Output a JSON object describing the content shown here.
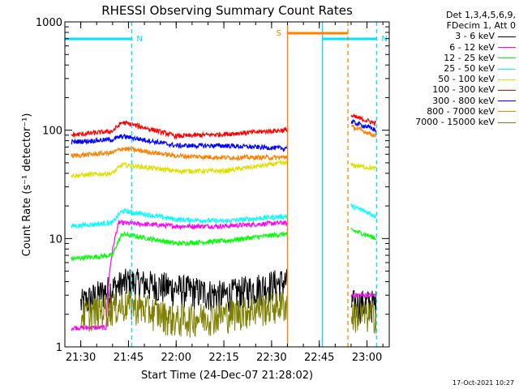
{
  "colors": {
    "n_band": "#00e0ff",
    "s_band": "#ff8000"
  },
  "chart_data": {
    "type": "line",
    "title": "RHESSI Observing Summary Count Rates",
    "xlabel": "Start Time (24-Dec-07 21:28:02)",
    "ylabel": "Count Rate (s⁻¹ detector⁻¹)",
    "y_scale": "log",
    "ylim": [
      1,
      1000
    ],
    "xlim": [
      "21:25",
      "23:07"
    ],
    "x_ticks": [
      "21:30",
      "21:45",
      "22:00",
      "22:15",
      "22:30",
      "22:45",
      "23:00"
    ],
    "y_ticks": [
      "1",
      "10",
      "100",
      "1000"
    ],
    "flag_markers": [
      {
        "label": "N",
        "start": "21:25",
        "end": "21:46"
      },
      {
        "label": "N",
        "start": "22:46",
        "end": "23:03"
      },
      {
        "label": "S",
        "start": "22:35",
        "end": "22:54"
      }
    ],
    "gaps": [
      {
        "start": "22:35",
        "end": "22:55"
      }
    ],
    "legend_header": [
      "Det 1,3,4,5,6,9,",
      "FDecim 1, Att 0"
    ],
    "series": [
      {
        "name": "3 - 6 keV",
        "color": "#000000",
        "x": [
          "21:30",
          "21:40",
          "21:45",
          "22:15",
          "22:34",
          "22:55",
          "23:03"
        ],
        "values": [
          2.5,
          3.5,
          4,
          3,
          4,
          2.5,
          2.5
        ]
      },
      {
        "name": "6 - 12 keV",
        "color": "#ff00ff",
        "x": [
          "21:27",
          "21:38",
          "21:42",
          "22:00",
          "22:15",
          "22:34",
          "22:55",
          "23:03"
        ],
        "values": [
          1.5,
          1.5,
          14,
          13,
          13,
          14,
          3,
          3
        ]
      },
      {
        "name": "12 - 25 keV",
        "color": "#00ff00",
        "x": [
          "21:27",
          "21:40",
          "21:43",
          "22:00",
          "22:15",
          "22:34",
          "22:55",
          "23:03"
        ],
        "values": [
          6.5,
          7,
          11,
          9,
          9.5,
          11,
          12,
          10
        ]
      },
      {
        "name": "25 - 50 keV",
        "color": "#00ffff",
        "x": [
          "21:27",
          "21:40",
          "21:43",
          "22:00",
          "22:15",
          "22:34",
          "22:55",
          "23:03"
        ],
        "values": [
          13,
          14,
          18,
          15,
          14.5,
          16,
          20,
          16
        ]
      },
      {
        "name": "50 - 100 keV",
        "color": "#e0e000",
        "x": [
          "21:27",
          "21:40",
          "21:43",
          "22:00",
          "22:15",
          "22:34",
          "22:55",
          "23:03"
        ],
        "values": [
          38,
          40,
          48,
          42,
          42,
          50,
          48,
          44
        ]
      },
      {
        "name": "100 - 300 keV",
        "color": "#ff0000",
        "x": [
          "21:27",
          "21:40",
          "21:43",
          "22:00",
          "22:15",
          "22:34",
          "22:55",
          "23:03"
        ],
        "values": [
          90,
          98,
          118,
          88,
          92,
          100,
          135,
          115
        ]
      },
      {
        "name": "300 - 800 keV",
        "color": "#0000ff",
        "x": [
          "21:27",
          "21:40",
          "21:43",
          "22:00",
          "22:15",
          "22:34",
          "22:55",
          "23:03"
        ],
        "values": [
          78,
          82,
          88,
          72,
          72,
          68,
          120,
          100
        ]
      },
      {
        "name": "800 - 7000 keV",
        "color": "#ff8000",
        "x": [
          "21:27",
          "21:40",
          "21:43",
          "22:00",
          "22:15",
          "22:34",
          "22:55",
          "23:03"
        ],
        "values": [
          58,
          62,
          68,
          58,
          56,
          56,
          108,
          88
        ]
      },
      {
        "name": "7000 - 15000 keV",
        "color": "#808000",
        "x": [
          "21:30",
          "21:45",
          "22:00",
          "22:15",
          "22:34",
          "22:55",
          "23:03"
        ],
        "values": [
          2,
          2.5,
          1.8,
          2,
          2.5,
          2,
          2
        ]
      }
    ],
    "grid": false,
    "legend_position": "right",
    "footer_date": "17-Oct-2021 10:27"
  }
}
